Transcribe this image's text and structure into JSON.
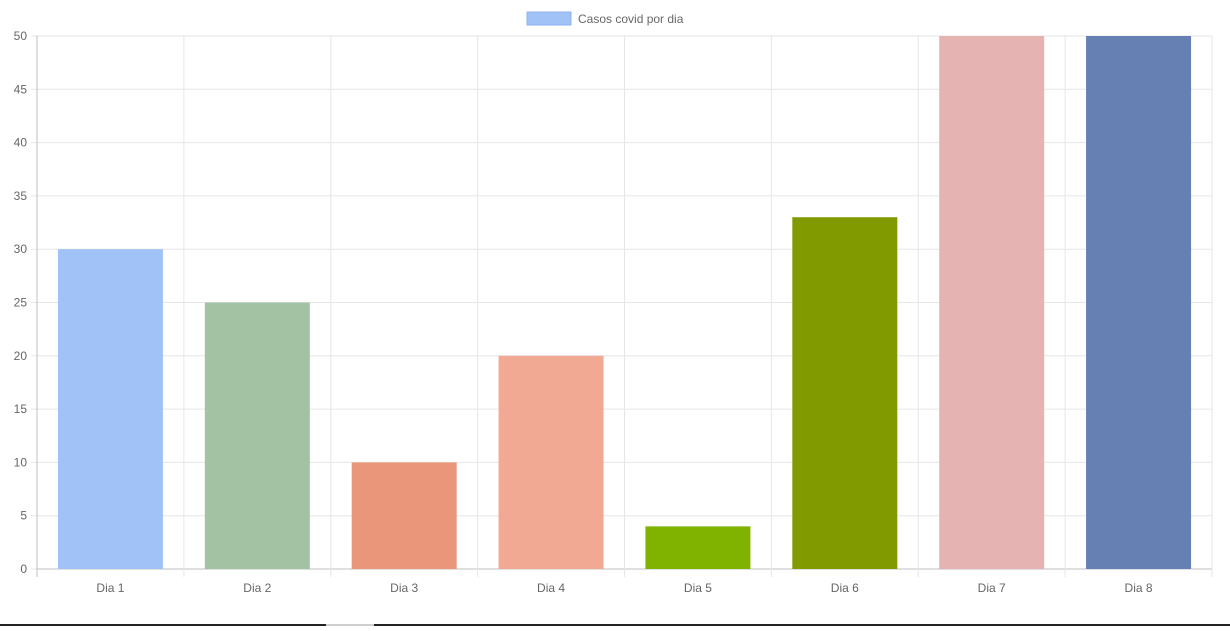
{
  "chart_data": {
    "type": "bar",
    "title": "",
    "xlabel": "",
    "ylabel": "",
    "categories": [
      "Dia 1",
      "Dia 2",
      "Dia 3",
      "Dia 4",
      "Dia 5",
      "Dia 6",
      "Dia 7",
      "Dia 8"
    ],
    "series": [
      {
        "name": "Casos covid por dia",
        "values": [
          30,
          25,
          10,
          20,
          4,
          33,
          50,
          50
        ],
        "colors": [
          "#a1c2f7",
          "#a3c2a3",
          "#e9967a",
          "#f2a994",
          "#7fb300",
          "#809a00",
          "#e5b3b2",
          "#6780b4"
        ]
      }
    ],
    "legend": {
      "position": "top",
      "label": "Casos covid por dia",
      "color": "#a1c2f7"
    },
    "ylim": [
      0,
      50
    ],
    "yticks": [
      "0",
      "5",
      "10",
      "15",
      "20",
      "25",
      "30",
      "35",
      "40",
      "45",
      "50"
    ],
    "grid": true,
    "colors": {
      "grid": "#e6e6e6",
      "axis": "#bfbfbf",
      "text": "#666666"
    }
  }
}
